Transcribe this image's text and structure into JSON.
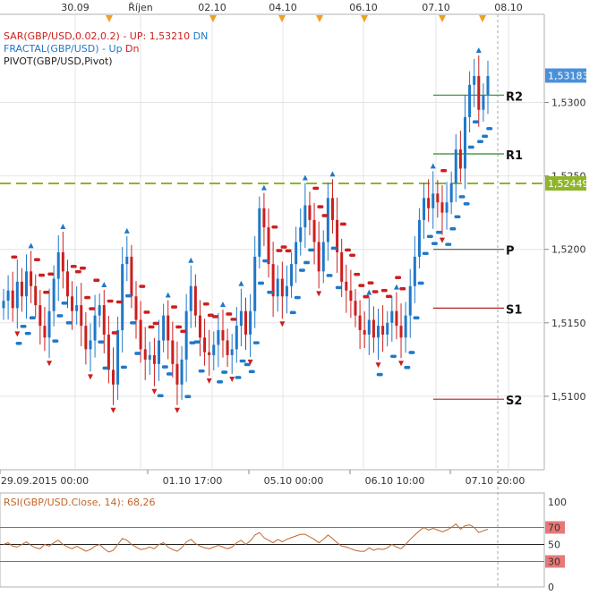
{
  "chart_data": [
    {
      "type": "candlestick",
      "symbol": "GBP/USD",
      "ylim": [
        1.505,
        1.536
      ],
      "y_ticks": [
        "1,5300",
        "1,5250",
        "1,5200",
        "1,5150",
        "1,5100"
      ],
      "x_top_labels": [
        "30.09",
        "Říjen",
        "02.10",
        "04.10",
        "06.10",
        "07.10",
        "08.10"
      ],
      "x_bottom_labels": [
        "29.09.2015 00:00",
        "01.10 17:00",
        "05.10 00:00",
        "06.10 10:00",
        "07.10 20:00"
      ],
      "price_badges": [
        {
          "value": "1,53183",
          "price": 1.53183,
          "color": "#4a90d9"
        },
        {
          "value": "1,52449",
          "price": 1.52449,
          "color": "#8fb52a"
        }
      ],
      "legend": [
        {
          "text": "SAR(GBP/USD,0.02,0.2)  -  ",
          "color": "#cc1f1f"
        },
        {
          "text": "UP: 1,53210",
          "color": "#cc1f1f"
        },
        {
          "text": "  DN",
          "color": "#1f78c9"
        }
      ],
      "legend2": [
        {
          "text": "FRACTAL(GBP/USD)  -  ",
          "color": "#1f78c9"
        },
        {
          "text": "Up",
          "color": "#1f78c9"
        },
        {
          "text": "  Dn",
          "color": "#cc1f1f"
        }
      ],
      "legend3": "PIVOT(GBP/USD,Pivot)",
      "pivots": [
        {
          "label": "R2",
          "value": 1.5305,
          "color": "#2e8b2e"
        },
        {
          "label": "R1",
          "value": 1.5265,
          "color": "#2e8b2e"
        },
        {
          "label": "P",
          "value": 1.52,
          "color": "#555555"
        },
        {
          "label": "S1",
          "value": 1.516,
          "color": "#b22222"
        },
        {
          "label": "S2",
          "value": 1.5098,
          "color": "#b22222"
        }
      ],
      "closes": [
        1.5165,
        1.5172,
        1.516,
        1.5178,
        1.5168,
        1.5185,
        1.5175,
        1.5162,
        1.5148,
        1.514,
        1.5158,
        1.518,
        1.5198,
        1.5185,
        1.5168,
        1.5158,
        1.5162,
        1.5148,
        1.5132,
        1.5138,
        1.5155,
        1.5162,
        1.5142,
        1.5118,
        1.5108,
        1.5145,
        1.519,
        1.5195,
        1.5168,
        1.5152,
        1.5132,
        1.5125,
        1.5128,
        1.5122,
        1.5138,
        1.5155,
        1.5138,
        1.5122,
        1.5108,
        1.5125,
        1.5158,
        1.5175,
        1.5155,
        1.514,
        1.513,
        1.5128,
        1.5135,
        1.5145,
        1.5138,
        1.5128,
        1.5132,
        1.5148,
        1.5158,
        1.5142,
        1.5158,
        1.5195,
        1.5228,
        1.5215,
        1.519,
        1.5168,
        1.518,
        1.5168,
        1.5175,
        1.519,
        1.5205,
        1.5215,
        1.523,
        1.522,
        1.5205,
        1.5185,
        1.5205,
        1.5235,
        1.522,
        1.5198,
        1.5178,
        1.5172,
        1.5165,
        1.5155,
        1.5145,
        1.5142,
        1.5152,
        1.514,
        1.5148,
        1.5142,
        1.515,
        1.5158,
        1.5148,
        1.514,
        1.5155,
        1.5175,
        1.5195,
        1.522,
        1.5235,
        1.5228,
        1.5238,
        1.5232,
        1.5225,
        1.5232,
        1.5245,
        1.5268,
        1.5255,
        1.529,
        1.5312,
        1.5318,
        1.5295,
        1.5305,
        1.5318
      ],
      "sar_up_label": "UP",
      "sar_dn_label": "DN"
    },
    {
      "type": "line",
      "title": "RSI(GBP/USD.Close, 14): 68,26",
      "ylim": [
        0,
        100
      ],
      "y_ticks": [
        "100",
        "70",
        "50",
        "30",
        "0"
      ],
      "levels": [
        70,
        50,
        30
      ],
      "values": [
        50,
        52,
        48,
        47,
        50,
        53,
        49,
        46,
        45,
        50,
        48,
        52,
        55,
        50,
        47,
        45,
        48,
        45,
        42,
        44,
        48,
        50,
        45,
        41,
        43,
        50,
        57,
        55,
        50,
        47,
        44,
        45,
        47,
        45,
        50,
        52,
        47,
        44,
        42,
        46,
        53,
        56,
        51,
        48,
        46,
        45,
        47,
        49,
        47,
        45,
        47,
        52,
        55,
        50,
        54,
        61,
        64,
        58,
        55,
        52,
        56,
        53,
        56,
        58,
        60,
        62,
        62,
        59,
        56,
        52,
        56,
        61,
        57,
        52,
        48,
        47,
        45,
        43,
        42,
        42,
        46,
        43,
        45,
        44,
        46,
        50,
        47,
        45,
        50,
        56,
        61,
        66,
        70,
        67,
        69,
        67,
        65,
        67,
        70,
        74,
        68,
        72,
        73,
        70,
        64,
        66,
        68
      ]
    }
  ]
}
